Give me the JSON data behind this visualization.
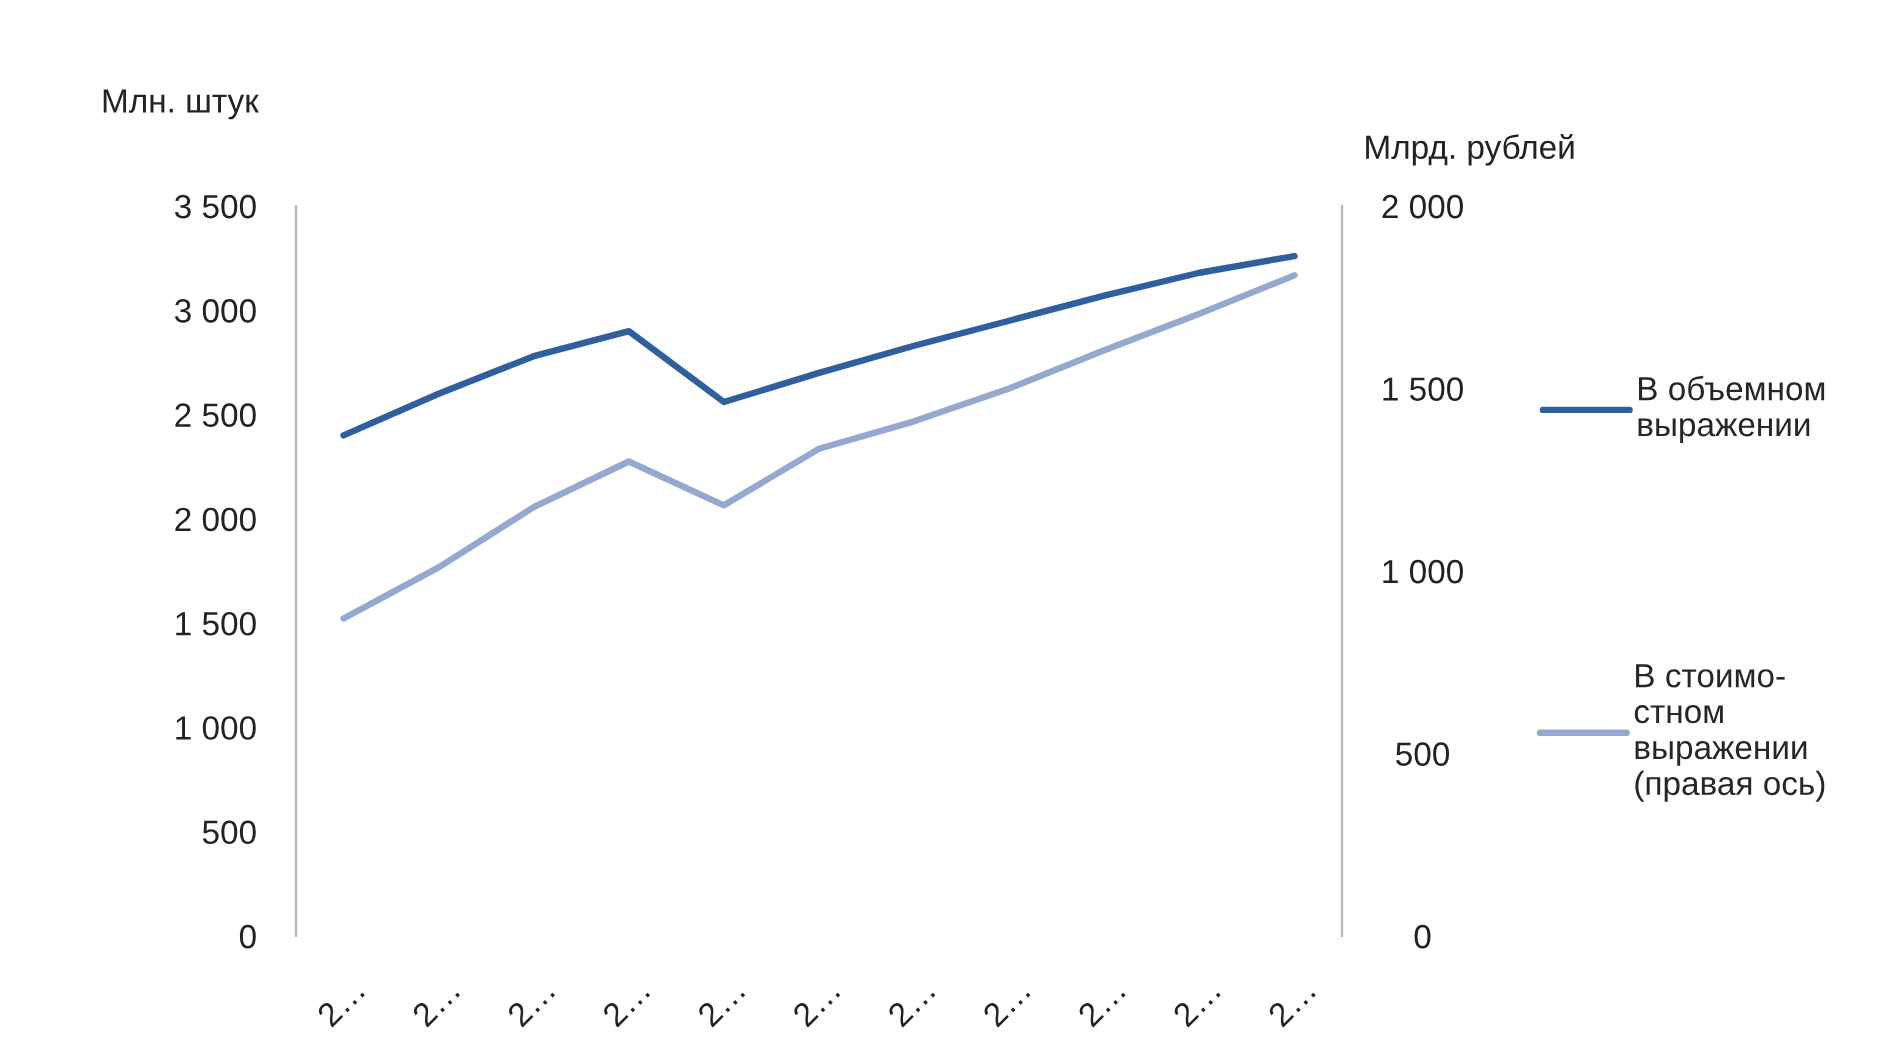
{
  "chart_data": {
    "type": "line",
    "categories": [
      "2…",
      "2…",
      "2…",
      "2…",
      "2…",
      "2…",
      "2…",
      "2…",
      "2…",
      "2…",
      "2…"
    ],
    "series": [
      {
        "name": "В объемном\nвыражении",
        "color": "#2f5f9e",
        "values": [
          2400,
          2600,
          2780,
          2900,
          2560,
          2700,
          2830,
          2950,
          3070,
          3180,
          3260
        ]
      },
      {
        "name": "В стоимо-\nстном\nвыражении\n(правая ось)",
        "color": "#94a9d2",
        "axis": "y2",
        "values": [
          870,
          1010,
          1175,
          1300,
          1180,
          1335,
          1410,
          1500,
          1605,
          1705,
          1810
        ]
      }
    ],
    "ylabel": "Млн. штук",
    "y2label": "Млрд. рублей",
    "ylim": [
      0,
      3500
    ],
    "yticks": [
      0,
      500,
      {
        "value": 1000,
        "label": "1 000"
      },
      {
        "value": 1500,
        "label": "1 500"
      },
      {
        "value": 2000,
        "label": "2 000"
      },
      {
        "value": 2500,
        "label": "2 500"
      },
      {
        "value": 3000,
        "label": "3 000"
      },
      {
        "value": 3500,
        "label": "3 500"
      }
    ],
    "y2lim": [
      0,
      2000
    ],
    "y2ticks": [
      0,
      500,
      {
        "value": 1000,
        "label": "1 000"
      },
      {
        "value": 1500,
        "label": "1 500"
      },
      {
        "value": 2000,
        "label": "2 000"
      }
    ],
    "legend": "right",
    "grid": false,
    "marker": "none",
    "line_style": "solid"
  }
}
